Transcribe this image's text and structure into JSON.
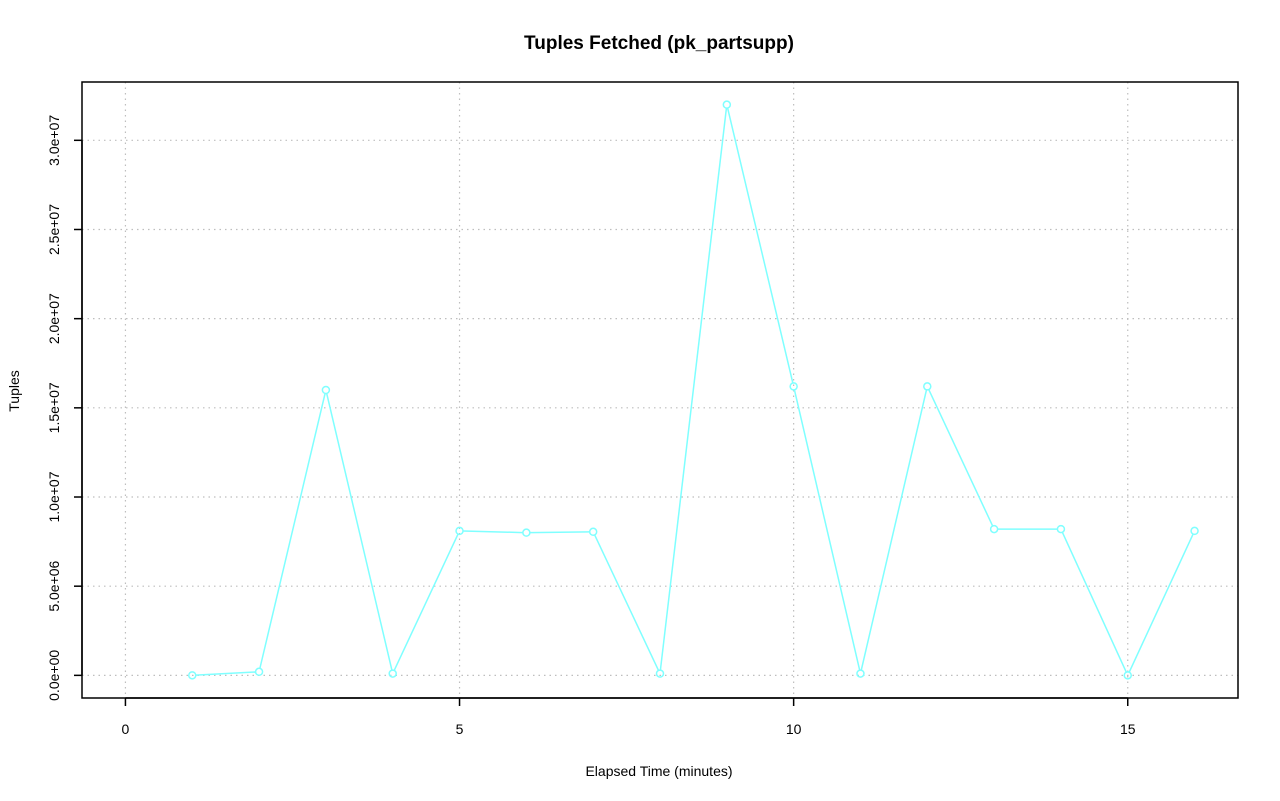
{
  "chart_data": {
    "type": "line",
    "title": "Tuples Fetched (pk_partsupp)",
    "xlabel": "Elapsed Time (minutes)",
    "ylabel": "Tuples",
    "x": [
      1,
      2,
      3,
      4,
      5,
      6,
      7,
      8,
      9,
      10,
      11,
      12,
      13,
      14,
      15,
      16
    ],
    "series": [
      {
        "values": [
          0,
          200000,
          16000000,
          100000,
          8100000,
          8000000,
          8050000,
          100000,
          32000000,
          16200000,
          100000,
          16200000,
          8200000,
          8200000,
          0,
          8100000
        ]
      }
    ],
    "xlim": [
      -0.65,
      16.65
    ],
    "ylim": [
      -1270000,
      33270000
    ],
    "x_ticks": [
      0,
      5,
      10,
      15
    ],
    "x_tick_labels": [
      "0",
      "5",
      "10",
      "15"
    ],
    "y_ticks": [
      0,
      5000000,
      10000000,
      15000000,
      20000000,
      25000000,
      30000000
    ],
    "y_tick_labels": [
      "0.0e+00",
      "5.0e+06",
      "1.0e+07",
      "1.5e+07",
      "2.0e+07",
      "2.5e+07",
      "3.0e+07"
    ],
    "grid": true,
    "grid_style": "dotted",
    "colors": {
      "series": "#7fffff",
      "grid": "#bebebe",
      "axis": "#000000"
    }
  }
}
